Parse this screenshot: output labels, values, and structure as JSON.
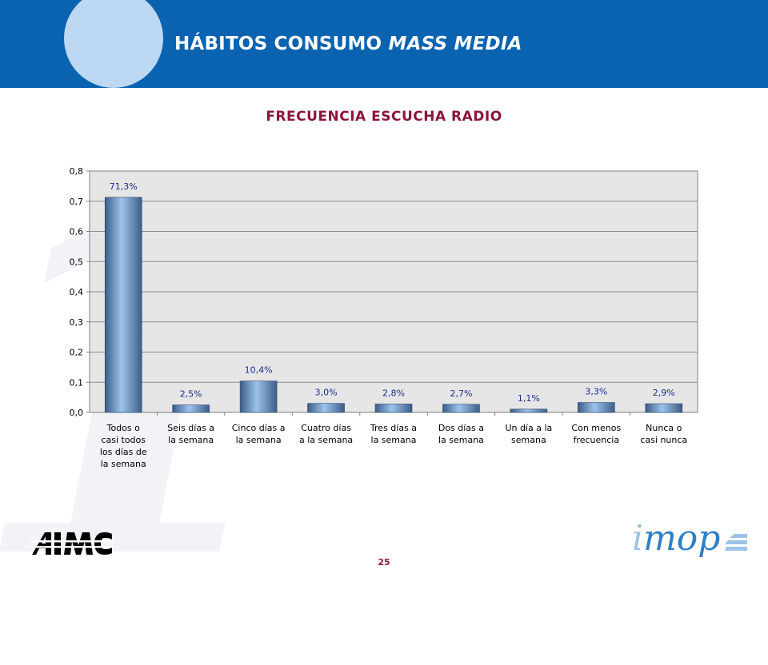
{
  "header": {
    "title_main": "HÁBITOS CONSUMO ",
    "title_italic": "MASS MEDIA"
  },
  "colors": {
    "header_blue": "#0a63b0",
    "title_red": "#8b1538",
    "bar_mid": "#9cc4ec",
    "bar_dark": "#3d5c86",
    "plot_bg": "#e6e6e6"
  },
  "chart_data": {
    "type": "bar",
    "title": "FRECUENCIA ESCUCHA RADIO",
    "categories": [
      [
        "Todos o",
        "casi todos",
        "los días de",
        "la semana"
      ],
      [
        "Seis días a",
        "la semana"
      ],
      [
        "Cinco días a",
        "la semana"
      ],
      [
        "Cuatro días",
        "a la semana"
      ],
      [
        "Tres días a",
        "la semana"
      ],
      [
        "Dos días a",
        "la semana"
      ],
      [
        "Un día a la",
        "semana"
      ],
      [
        "Con menos",
        "frecuencia"
      ],
      [
        "Nunca o",
        "casi nunca"
      ]
    ],
    "values": [
      0.713,
      0.025,
      0.104,
      0.03,
      0.028,
      0.027,
      0.011,
      0.033,
      0.029
    ],
    "data_labels": [
      "71,3%",
      "2,5%",
      "10,4%",
      "3,0%",
      "2,8%",
      "2,7%",
      "1,1%",
      "3,3%",
      "2,9%"
    ],
    "ylim": [
      0,
      0.8
    ],
    "yticks": [
      "0,0",
      "0,1",
      "0,2",
      "0,3",
      "0,4",
      "0,5",
      "0,6",
      "0,7",
      "0,8"
    ],
    "grid": true,
    "legend": "none"
  },
  "footer": {
    "page_number": "25",
    "logo_left": "AIMC",
    "logo_right_i": "i",
    "logo_right_rest": "mop"
  }
}
